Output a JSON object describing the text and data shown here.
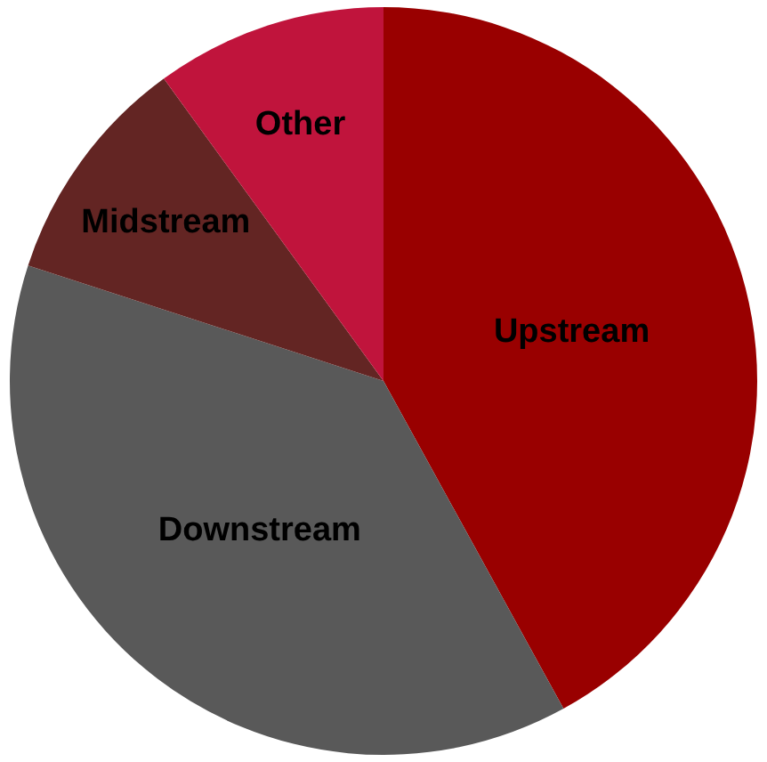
{
  "chart_data": {
    "type": "pie",
    "categories": [
      "Upstream",
      "Downstream",
      "Midstream",
      "Other"
    ],
    "values": [
      42,
      38,
      10,
      10
    ],
    "colors": [
      "#990000",
      "#595959",
      "#632523",
      "#c0143c"
    ],
    "legend": false
  }
}
